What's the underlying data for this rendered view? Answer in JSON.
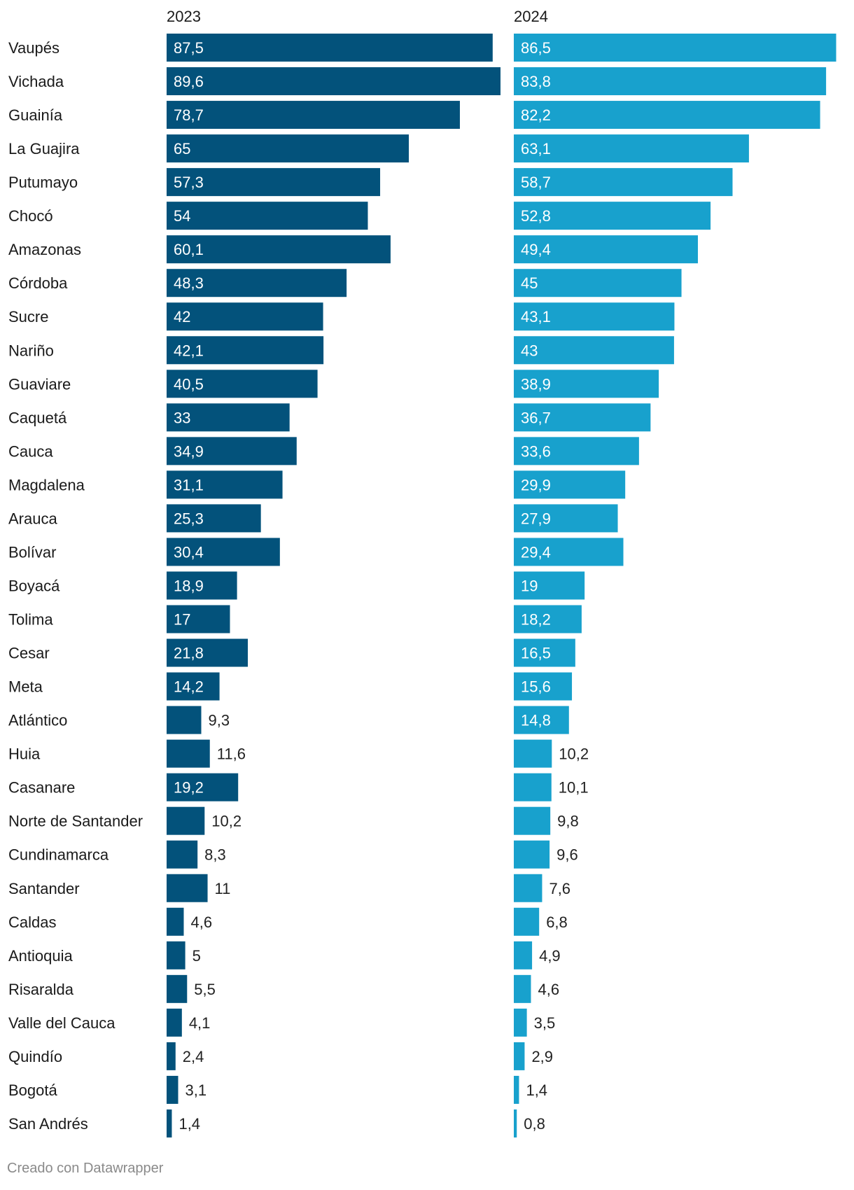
{
  "chart_data": {
    "type": "bar",
    "orientation": "horizontal",
    "categories": [
      "Vaupés",
      "Vichada",
      "Guainía",
      "La Guajira",
      "Putumayo",
      "Chocó",
      "Amazonas",
      "Córdoba",
      "Sucre",
      "Nariño",
      "Guaviare",
      "Caquetá",
      "Cauca",
      "Magdalena",
      "Arauca",
      "Bolívar",
      "Boyacá",
      "Tolima",
      "Cesar",
      "Meta",
      "Atlántico",
      "Huia",
      "Casanare",
      "Norte de Santander",
      "Cundinamarca",
      "Santander",
      "Caldas",
      "Antioquia",
      "Risaralda",
      "Valle del Cauca",
      "Quindío",
      "Bogotá",
      "San Andrés"
    ],
    "series": [
      {
        "name": "2023",
        "color": "#03527b",
        "values": [
          87.5,
          89.6,
          78.7,
          65,
          57.3,
          54,
          60.1,
          48.3,
          42,
          42.1,
          40.5,
          33,
          34.9,
          31.1,
          25.3,
          30.4,
          18.9,
          17,
          21.8,
          14.2,
          9.3,
          11.6,
          19.2,
          10.2,
          8.3,
          11,
          4.6,
          5,
          5.5,
          4.1,
          2.4,
          3.1,
          1.4
        ],
        "labels": [
          "87,5",
          "89,6",
          "78,7",
          "65",
          "57,3",
          "54",
          "60,1",
          "48,3",
          "42",
          "42,1",
          "40,5",
          "33",
          "34,9",
          "31,1",
          "25,3",
          "30,4",
          "18,9",
          "17",
          "21,8",
          "14,2",
          "9,3",
          "11,6",
          "19,2",
          "10,2",
          "8,3",
          "11",
          "4,6",
          "5",
          "5,5",
          "4,1",
          "2,4",
          "3,1",
          "1,4"
        ]
      },
      {
        "name": "2024",
        "color": "#18a1cd",
        "values": [
          86.5,
          83.8,
          82.2,
          63.1,
          58.7,
          52.8,
          49.4,
          45,
          43.1,
          43,
          38.9,
          36.7,
          33.6,
          29.9,
          27.9,
          29.4,
          19,
          18.2,
          16.5,
          15.6,
          14.8,
          10.2,
          10.1,
          9.8,
          9.6,
          7.6,
          6.8,
          4.9,
          4.6,
          3.5,
          2.9,
          1.4,
          0.8
        ],
        "labels": [
          "86,5",
          "83,8",
          "82,2",
          "63,1",
          "58,7",
          "52,8",
          "49,4",
          "45",
          "43,1",
          "43",
          "38,9",
          "36,7",
          "33,6",
          "29,9",
          "27,9",
          "29,4",
          "19",
          "18,2",
          "16,5",
          "15,6",
          "14,8",
          "10,2",
          "10,1",
          "9,8",
          "9,6",
          "7,6",
          "6,8",
          "4,9",
          "4,6",
          "3,5",
          "2,9",
          "1,4",
          "0,8"
        ]
      }
    ],
    "xlim": [
      0,
      89.6
    ],
    "grid": false,
    "legend": "none"
  },
  "credit": "Creado con Datawrapper"
}
